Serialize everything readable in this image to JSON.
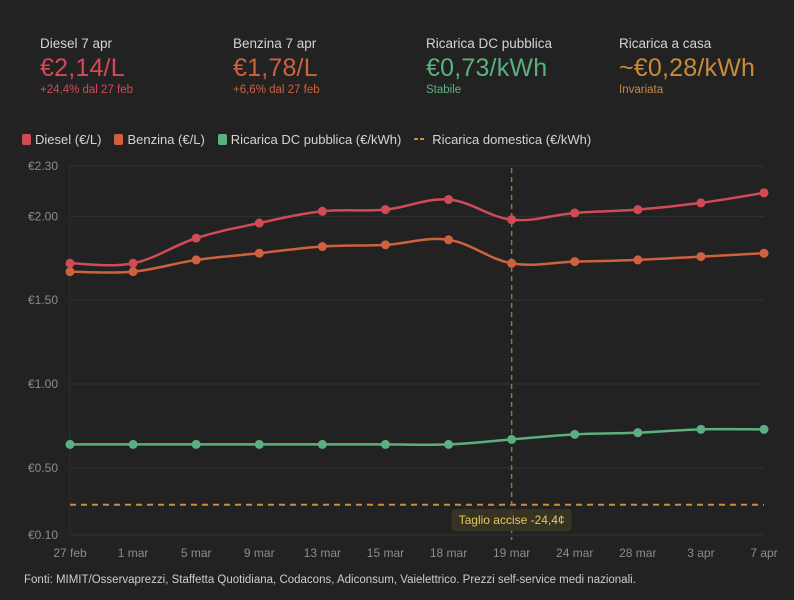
{
  "kpis": [
    {
      "label": "Diesel 7 apr",
      "value": "€2,14/L",
      "sub": "+24,4% dal 27 feb",
      "color": "#d14b57",
      "sub_color": "#d14b57"
    },
    {
      "label": "Benzina 7 apr",
      "value": "€1,78/L",
      "sub": "+6,6% dal 27 feb",
      "color": "#d0613f",
      "sub_color": "#d0613f"
    },
    {
      "label": "Ricarica DC pubblica",
      "value": "€0,73/kWh",
      "sub": "Stabile",
      "color": "#5bb07f",
      "sub_color": "#5bb07f"
    },
    {
      "label": "Ricarica a casa",
      "value": "~€0,28/kWh",
      "sub": "Invariata",
      "color": "#c98a3c",
      "sub_color": "#c98a3c"
    }
  ],
  "legend": [
    {
      "label": "Diesel (€/L)",
      "color": "#d14b57",
      "style": "solid"
    },
    {
      "label": "Benzina (€/L)",
      "color": "#d0613f",
      "style": "solid"
    },
    {
      "label": "Ricarica DC pubblica (€/kWh)",
      "color": "#5bb07f",
      "style": "solid"
    },
    {
      "label": "Ricarica domestica (€/kWh)",
      "color": "#d08a3a",
      "style": "dashed"
    }
  ],
  "chart_data": {
    "type": "line",
    "title": "",
    "xlabel": "",
    "ylabel": "",
    "categories": [
      "27 feb",
      "1 mar",
      "5 mar",
      "9 mar",
      "13 mar",
      "15 mar",
      "18 mar",
      "19 mar",
      "24 mar",
      "28 mar",
      "3 apr",
      "7 apr"
    ],
    "y_ticks": [
      2.3,
      2.0,
      1.5,
      1.0,
      0.5,
      0.1
    ],
    "y_tick_labels": [
      "€2.30",
      "€2.00",
      "€1.50",
      "€1.00",
      "€0.50",
      "€0.10"
    ],
    "ylim": [
      0.1,
      2.3
    ],
    "grid": true,
    "legend_position": "top-left",
    "series": [
      {
        "name": "Diesel (€/L)",
        "color": "#d14b57",
        "values": [
          1.72,
          1.72,
          1.87,
          1.96,
          2.03,
          2.04,
          2.1,
          1.98,
          2.02,
          2.04,
          2.08,
          2.14
        ]
      },
      {
        "name": "Benzina (€/L)",
        "color": "#d0613f",
        "values": [
          1.67,
          1.67,
          1.74,
          1.78,
          1.82,
          1.83,
          1.86,
          1.72,
          1.73,
          1.74,
          1.76,
          1.78
        ]
      },
      {
        "name": "Ricarica DC pubblica (€/kWh)",
        "color": "#5bb07f",
        "values": [
          0.64,
          0.64,
          0.64,
          0.64,
          0.64,
          0.64,
          0.64,
          0.67,
          0.7,
          0.71,
          0.73,
          0.73
        ]
      }
    ],
    "reference_lines": [
      {
        "name": "Ricarica domestica (€/kWh)",
        "value": 0.28,
        "color": "#d08a3a",
        "style": "dashed"
      }
    ],
    "annotations": [
      {
        "x": "19 mar",
        "label": "Taglio accise -24,4¢",
        "style": "vertical-dashed",
        "color": "#8a7a3a",
        "text_color": "#e8c75a"
      }
    ]
  },
  "footer": "Fonti: MIMIT/Osservaprezzi, Staffetta Quotidiana, Codacons, Adiconsum, Vaielettrico. Prezzi self-service medi nazionali."
}
